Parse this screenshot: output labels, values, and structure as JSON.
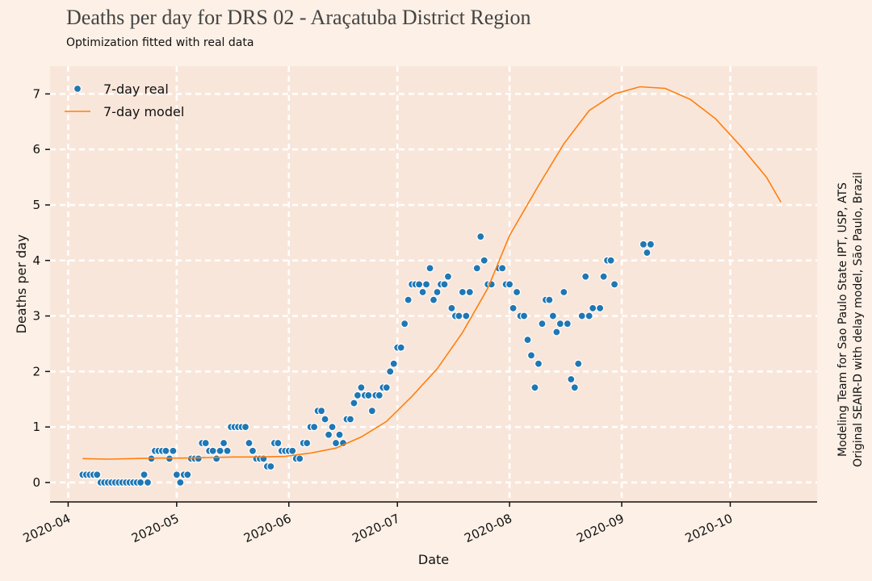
{
  "chart_data": {
    "type": "scatter",
    "title": "Deaths per day for DRS 02 - Araçatuba District Region",
    "subtitle": "Optimization fitted with real data",
    "xlabel": "Date",
    "ylabel": "Deaths per day",
    "annotation": [
      "Modeling Team for Sao Paulo State IPT, USP, ATS",
      "Original SEAIR-D with delay model, São Paulo, Brazil"
    ],
    "legend": "upper left",
    "grid": true,
    "xlim": [
      "2020-03-27",
      "2020-10-25"
    ],
    "xticks": [
      {
        "value": "2020-04-01",
        "label": "2020-04"
      },
      {
        "value": "2020-05-01",
        "label": "2020-05"
      },
      {
        "value": "2020-06-01",
        "label": "2020-06"
      },
      {
        "value": "2020-07-01",
        "label": "2020-07"
      },
      {
        "value": "2020-08-01",
        "label": "2020-08"
      },
      {
        "value": "2020-09-01",
        "label": "2020-09"
      },
      {
        "value": "2020-10-01",
        "label": "2020-10"
      }
    ],
    "ylim": [
      -0.35,
      7.5
    ],
    "yticks": [
      0,
      1,
      2,
      3,
      4,
      5,
      6,
      7
    ],
    "series": [
      {
        "name": "7-day real",
        "type": "scatter",
        "color": "#1f77b4",
        "x": [
          "2020-04-05",
          "2020-04-06",
          "2020-04-07",
          "2020-04-08",
          "2020-04-09",
          "2020-04-10",
          "2020-04-11",
          "2020-04-12",
          "2020-04-13",
          "2020-04-14",
          "2020-04-15",
          "2020-04-16",
          "2020-04-17",
          "2020-04-18",
          "2020-04-19",
          "2020-04-20",
          "2020-04-21",
          "2020-04-22",
          "2020-04-23",
          "2020-04-24",
          "2020-04-25",
          "2020-04-26",
          "2020-04-27",
          "2020-04-28",
          "2020-04-29",
          "2020-04-30",
          "2020-05-01",
          "2020-05-02",
          "2020-05-03",
          "2020-05-04",
          "2020-05-05",
          "2020-05-06",
          "2020-05-07",
          "2020-05-08",
          "2020-05-09",
          "2020-05-10",
          "2020-05-11",
          "2020-05-12",
          "2020-05-13",
          "2020-05-14",
          "2020-05-15",
          "2020-05-16",
          "2020-05-17",
          "2020-05-18",
          "2020-05-19",
          "2020-05-20",
          "2020-05-21",
          "2020-05-22",
          "2020-05-23",
          "2020-05-24",
          "2020-05-25",
          "2020-05-26",
          "2020-05-27",
          "2020-05-28",
          "2020-05-29",
          "2020-05-30",
          "2020-05-31",
          "2020-06-01",
          "2020-06-02",
          "2020-06-03",
          "2020-06-04",
          "2020-06-05",
          "2020-06-06",
          "2020-06-07",
          "2020-06-08",
          "2020-06-09",
          "2020-06-10",
          "2020-06-11",
          "2020-06-12",
          "2020-06-13",
          "2020-06-14",
          "2020-06-15",
          "2020-06-16",
          "2020-06-17",
          "2020-06-18",
          "2020-06-19",
          "2020-06-20",
          "2020-06-21",
          "2020-06-22",
          "2020-06-23",
          "2020-06-24",
          "2020-06-25",
          "2020-06-26",
          "2020-06-27",
          "2020-06-28",
          "2020-06-29",
          "2020-06-30",
          "2020-07-01",
          "2020-07-02",
          "2020-07-03",
          "2020-07-04",
          "2020-07-05",
          "2020-07-06",
          "2020-07-07",
          "2020-07-08",
          "2020-07-09",
          "2020-07-10",
          "2020-07-11",
          "2020-07-12",
          "2020-07-13",
          "2020-07-14",
          "2020-07-15",
          "2020-07-16",
          "2020-07-17",
          "2020-07-18",
          "2020-07-19",
          "2020-07-20",
          "2020-07-21",
          "2020-07-23",
          "2020-07-24",
          "2020-07-25",
          "2020-07-26",
          "2020-07-27",
          "2020-07-29",
          "2020-07-30",
          "2020-07-31",
          "2020-08-01",
          "2020-08-02",
          "2020-08-03",
          "2020-08-04",
          "2020-08-05",
          "2020-08-06",
          "2020-08-07",
          "2020-08-08",
          "2020-08-09",
          "2020-08-10",
          "2020-08-11",
          "2020-08-12",
          "2020-08-13",
          "2020-08-14",
          "2020-08-15",
          "2020-08-16",
          "2020-08-17",
          "2020-08-18",
          "2020-08-19",
          "2020-08-20",
          "2020-08-21",
          "2020-08-22",
          "2020-08-23",
          "2020-08-24",
          "2020-08-26",
          "2020-08-27",
          "2020-08-28",
          "2020-08-29",
          "2020-08-30",
          "2020-09-07",
          "2020-09-08",
          "2020-09-09"
        ],
        "values": [
          0.14,
          0.14,
          0.14,
          0.14,
          0.14,
          0,
          0,
          0,
          0,
          0,
          0,
          0,
          0,
          0,
          0,
          0,
          0,
          0.14,
          0,
          0.43,
          0.57,
          0.57,
          0.57,
          0.57,
          0.43,
          0.57,
          0.14,
          0,
          0.14,
          0.14,
          0.43,
          0.43,
          0.43,
          0.71,
          0.71,
          0.57,
          0.57,
          0.43,
          0.57,
          0.71,
          0.57,
          1.0,
          1.0,
          1.0,
          1.0,
          1.0,
          0.71,
          0.57,
          0.43,
          0.43,
          0.43,
          0.29,
          0.29,
          0.71,
          0.71,
          0.57,
          0.57,
          0.57,
          0.57,
          0.43,
          0.43,
          0.71,
          0.71,
          1.0,
          1.0,
          1.29,
          1.29,
          1.14,
          0.86,
          1.0,
          0.71,
          0.86,
          0.71,
          1.14,
          1.14,
          1.43,
          1.57,
          1.71,
          1.57,
          1.57,
          1.29,
          1.57,
          1.57,
          1.71,
          1.71,
          2.0,
          2.14,
          2.43,
          2.43,
          2.86,
          3.29,
          3.57,
          3.57,
          3.57,
          3.43,
          3.57,
          3.86,
          3.29,
          3.43,
          3.57,
          3.57,
          3.71,
          3.14,
          3.0,
          3.0,
          3.43,
          3.0,
          3.43,
          3.86,
          4.43,
          4.0,
          3.57,
          3.57,
          3.86,
          3.86,
          3.57,
          3.57,
          3.14,
          3.43,
          3.0,
          3.0,
          2.57,
          2.29,
          1.71,
          2.14,
          2.86,
          3.29,
          3.29,
          3.0,
          2.71,
          2.86,
          3.43,
          2.86,
          1.86,
          1.71,
          2.14,
          3.0,
          3.71,
          3.0,
          3.14,
          3.14,
          3.71,
          4.0,
          4.0,
          3.57,
          4.29,
          4.14,
          4.29
        ]
      },
      {
        "name": "7-day model",
        "type": "line",
        "color": "#ff7f0e",
        "x": [
          "2020-04-05",
          "2020-04-12",
          "2020-04-19",
          "2020-04-26",
          "2020-05-03",
          "2020-05-10",
          "2020-05-17",
          "2020-05-24",
          "2020-05-31",
          "2020-06-07",
          "2020-06-14",
          "2020-06-21",
          "2020-06-28",
          "2020-07-05",
          "2020-07-12",
          "2020-07-19",
          "2020-07-26",
          "2020-08-01",
          "2020-08-09",
          "2020-08-16",
          "2020-08-23",
          "2020-08-30",
          "2020-09-06",
          "2020-09-13",
          "2020-09-20",
          "2020-09-27",
          "2020-10-04",
          "2020-10-11",
          "2020-10-15"
        ],
        "values": [
          0.43,
          0.42,
          0.43,
          0.44,
          0.44,
          0.45,
          0.46,
          0.46,
          0.47,
          0.53,
          0.62,
          0.82,
          1.1,
          1.55,
          2.05,
          2.7,
          3.5,
          4.45,
          5.35,
          6.1,
          6.7,
          7.0,
          7.13,
          7.1,
          6.9,
          6.55,
          6.05,
          5.5,
          5.05
        ]
      }
    ]
  }
}
